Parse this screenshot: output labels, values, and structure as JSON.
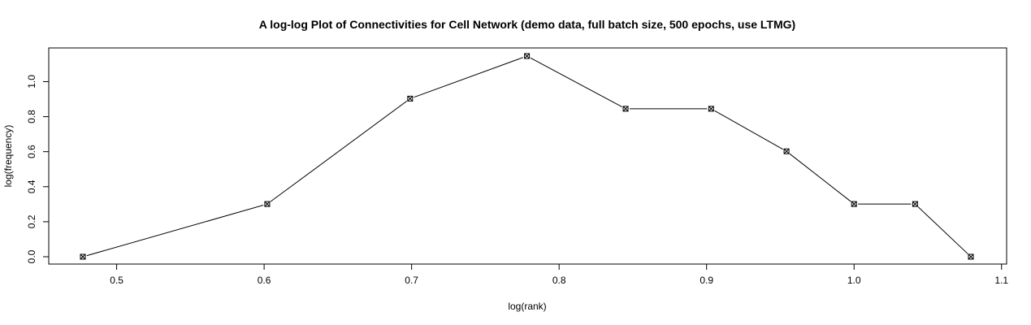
{
  "chart_data": {
    "type": "line",
    "title": "A log-log Plot of Connectivities for Cell Network (demo data, full batch size, 500 epochs, use LTMG)",
    "xlabel": "log(rank)",
    "ylabel": "log(frequency)",
    "xlim": [
      0.4771,
      1.0792
    ],
    "ylim": [
      0.0,
      1.146
    ],
    "xticks": [
      0.5,
      0.6,
      0.7,
      0.8,
      0.9,
      1.0,
      1.1
    ],
    "xtick_labels": [
      "0.5",
      "0.6",
      "0.7",
      "0.8",
      "0.9",
      "1.0",
      "1.1"
    ],
    "yticks": [
      0.0,
      0.2,
      0.4,
      0.6,
      0.8,
      1.0
    ],
    "ytick_labels": [
      "0.0",
      "0.2",
      "0.4",
      "0.6",
      "0.8",
      "1.0"
    ],
    "grid": false,
    "marker": "boxed-x",
    "series": [
      {
        "x": [
          0.4771,
          0.6021,
          0.699,
          0.7782,
          0.8451,
          0.9031,
          0.9542,
          1.0,
          1.0414,
          1.0792
        ],
        "y": [
          0.0,
          0.301,
          0.903,
          1.146,
          0.845,
          0.845,
          0.602,
          0.301,
          0.301,
          0.0
        ]
      }
    ]
  }
}
